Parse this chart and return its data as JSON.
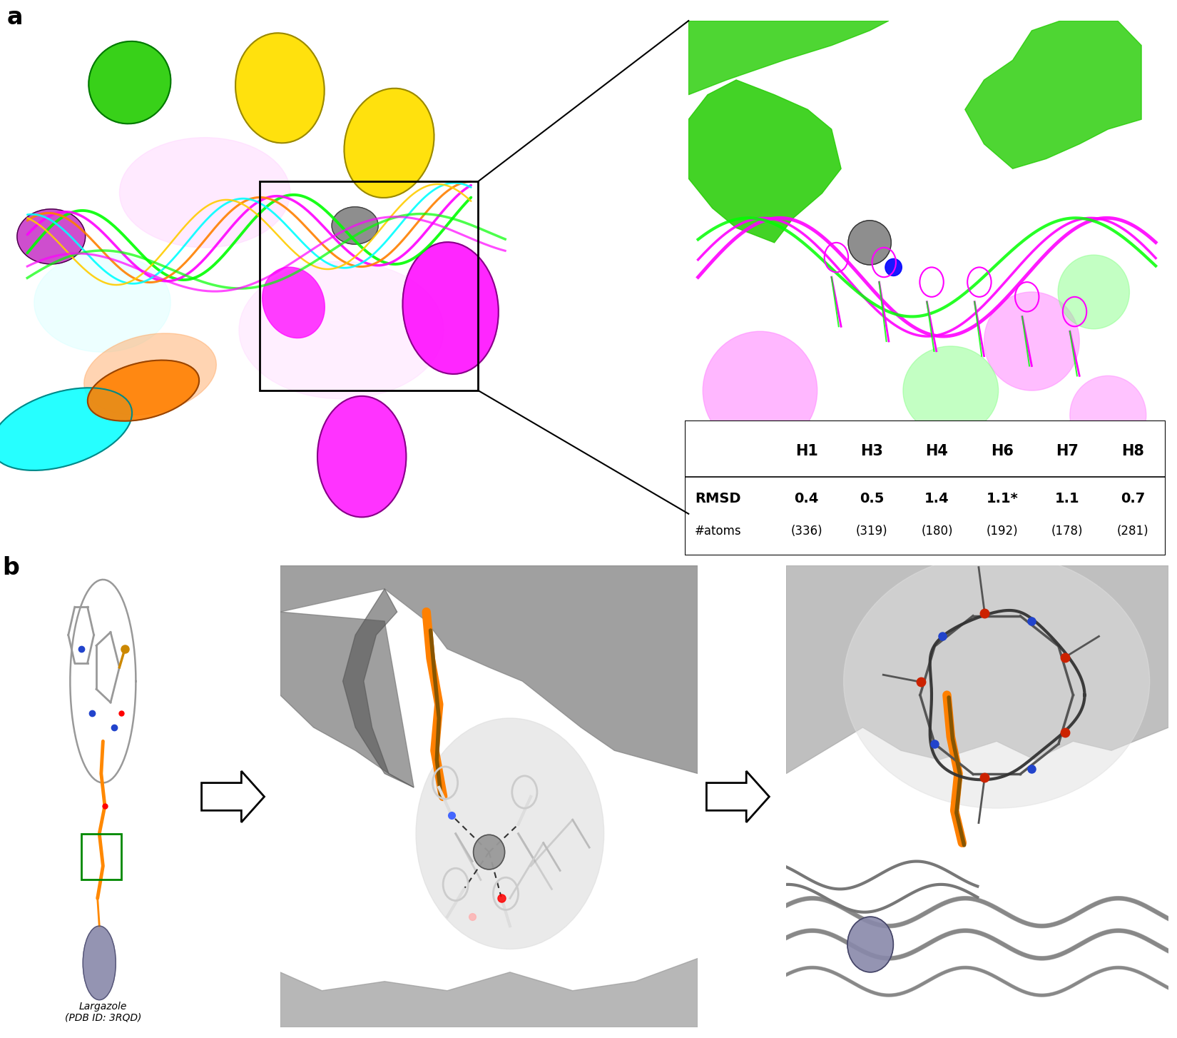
{
  "panel_a_label": "a",
  "panel_b_label": "b",
  "table_headers": [
    "H1",
    "H3",
    "H4",
    "H6",
    "H7",
    "H8"
  ],
  "table_row1_label": "RMSD\n#atoms",
  "rmsd_values": [
    "0.4",
    "0.5",
    "1.4",
    "1.1*",
    "1.1",
    "0.7"
  ],
  "atom_counts": [
    "(336)",
    "(319)",
    "(180)",
    "(192)",
    "(178)",
    "(281)"
  ],
  "largazole_label": "Largazole\n(PDB ID: 3RQD)",
  "bg_color": "#ffffff",
  "label_fontsize": 24,
  "table_header_fontsize": 15,
  "table_data_fontsize": 14,
  "annotation_fontsize": 11,
  "panel_a_main_bg": "#ffffff",
  "panel_a_zoom_bg": "#ffffff",
  "panel_b_mid_bg": "#d8d8d8",
  "panel_b_right_bg": "#d8d8d8"
}
